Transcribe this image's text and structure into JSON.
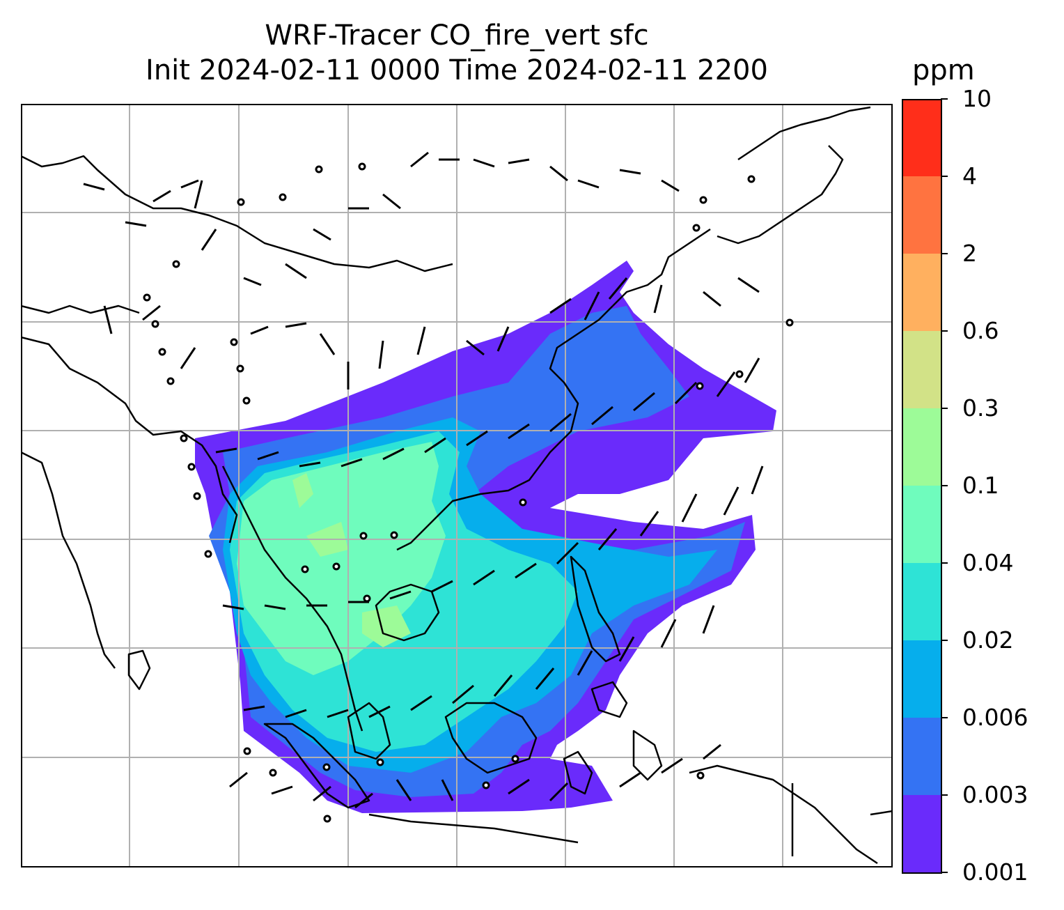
{
  "title": {
    "line1": "WRF-Tracer CO_fire_vert sfc",
    "line2": "Init 2024-02-11 0000 Time 2024-02-11 2200"
  },
  "colorbar": {
    "unit": "ppm",
    "levels": [
      "0.001",
      "0.003",
      "0.006",
      "0.02",
      "0.04",
      "0.1",
      "0.3",
      "0.6",
      "2",
      "4",
      "10"
    ],
    "colors": [
      "#6a2bfb",
      "#3473f3",
      "#06aeec",
      "#2ee3d6",
      "#6ffcbd",
      "#9dfb98",
      "#d2e287",
      "#ffb05f",
      "#ff7340",
      "#ff2e1a"
    ]
  },
  "map": {
    "gridlines": true,
    "grid_color": "#b0b0b0",
    "coastline_color": "#000000",
    "wind_barbs": "black"
  }
}
